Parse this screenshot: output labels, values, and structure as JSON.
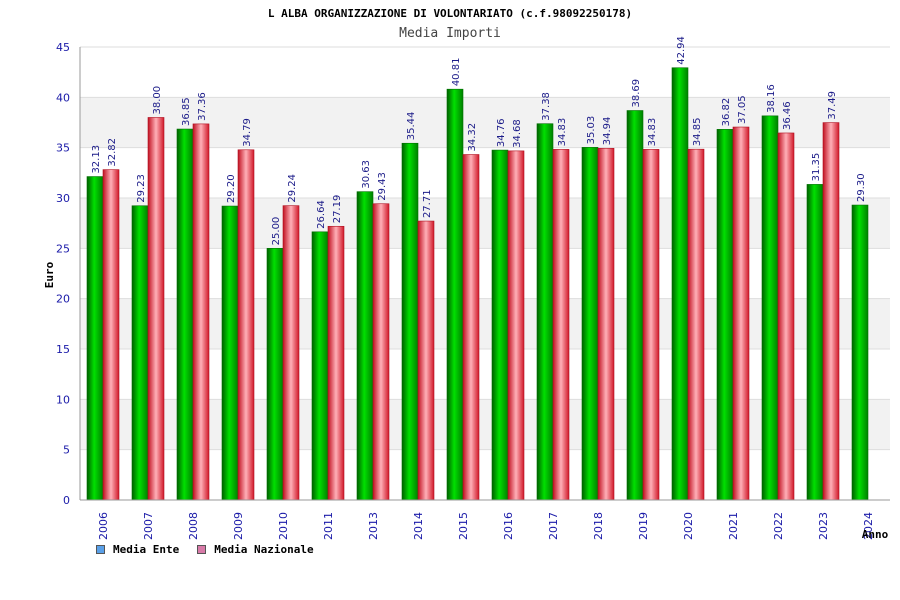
{
  "chart_data": {
    "type": "bar",
    "title": "L ALBA ORGANIZZAZIONE DI VOLONTARIATO (c.f.98092250178)",
    "subtitle": "Media Importi",
    "ylabel": "Euro",
    "xlabel": "Anno",
    "ylim": [
      0,
      45
    ],
    "yticks": [
      0,
      5,
      10,
      15,
      20,
      25,
      30,
      35,
      40,
      45
    ],
    "categories": [
      "2006",
      "2007",
      "2008",
      "2009",
      "2010",
      "2011",
      "2013",
      "2014",
      "2015",
      "2016",
      "2017",
      "2018",
      "2019",
      "2020",
      "2021",
      "2022",
      "2023",
      "2024"
    ],
    "series": [
      {
        "name": "Media Ente",
        "color": "#00b000",
        "legend_color": "#5aa0e8",
        "values": [
          32.13,
          29.23,
          36.85,
          29.2,
          25.0,
          26.64,
          30.63,
          35.44,
          40.81,
          34.76,
          37.38,
          35.03,
          38.69,
          42.94,
          36.82,
          38.16,
          31.35,
          29.3
        ],
        "labels": [
          "32.13",
          "29.23",
          "36.85",
          "29.20",
          "25.00",
          "26.64",
          "30.63",
          "35.44",
          "40.81",
          "34.76",
          "37.38",
          "35.03",
          "38.69",
          "42.94",
          "36.82",
          "38.16",
          "31.35",
          "29.30"
        ]
      },
      {
        "name": "Media Nazionale",
        "color": "#e83040",
        "legend_color": "#d87aa8",
        "values": [
          32.82,
          38.0,
          37.36,
          34.79,
          29.24,
          27.19,
          29.43,
          27.71,
          34.32,
          34.68,
          34.83,
          34.94,
          34.83,
          34.85,
          37.05,
          36.46,
          37.49,
          null
        ],
        "labels": [
          "32.82",
          "38.00",
          "37.36",
          "34.79",
          "29.24",
          "27.19",
          "29.43",
          "27.71",
          "34.32",
          "34.68",
          "34.83",
          "34.94",
          "34.83",
          "34.85",
          "37.05",
          "36.46",
          "37.49",
          null
        ]
      }
    ],
    "grid": true,
    "legend_position": "bottom-left"
  }
}
